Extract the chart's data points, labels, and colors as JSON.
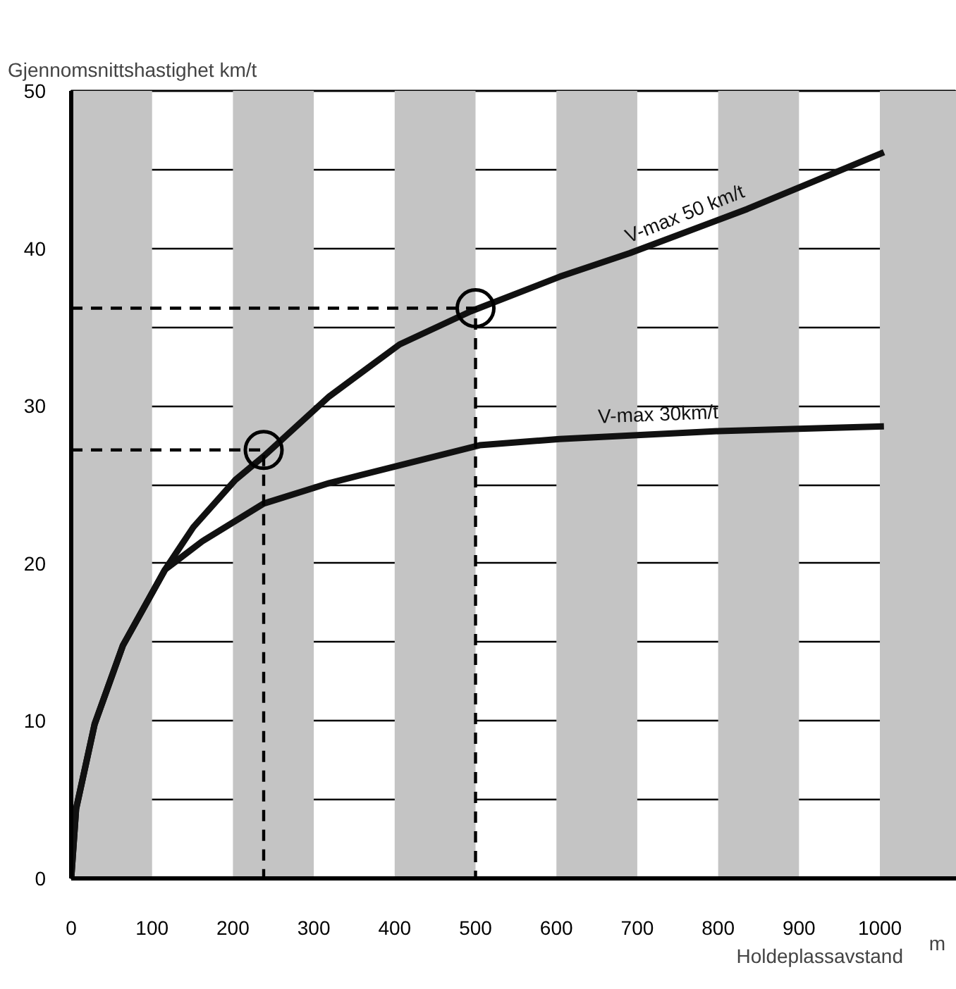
{
  "chart_data": {
    "type": "line",
    "xlabel": "Holdeplassavstand",
    "ylabel": "Gjennomsnittshastighet  km/t",
    "annotations": [
      "m"
    ],
    "xlim": [
      0,
      1095
    ],
    "ylim": [
      0,
      50
    ],
    "xticks": [
      0,
      100,
      200,
      300,
      400,
      500,
      600,
      700,
      800,
      900,
      1000
    ],
    "yticks": [
      0,
      {
        "value": 5,
        "label": null
      },
      10,
      {
        "value": 15,
        "label": null
      },
      20,
      {
        "value": 25,
        "label": null
      },
      30,
      {
        "value": 35,
        "label": null
      },
      40,
      {
        "value": 45,
        "label": null
      },
      50
    ],
    "grid": "y",
    "legend": false,
    "bands": [
      {
        "axis": "x",
        "from": 0,
        "to": 100,
        "color": "#c4c4c4"
      },
      {
        "axis": "x",
        "from": 200,
        "to": 300,
        "color": "#c4c4c4"
      },
      {
        "axis": "x",
        "from": 400,
        "to": 500,
        "color": "#c4c4c4"
      },
      {
        "axis": "x",
        "from": 600,
        "to": 700,
        "color": "#c4c4c4"
      },
      {
        "axis": "x",
        "from": 800,
        "to": 900,
        "color": "#c4c4c4"
      },
      {
        "axis": "x",
        "from": 1000,
        "to": 1095,
        "color": "#c4c4c4"
      }
    ],
    "series": [
      {
        "name": "V-max 50 km/t",
        "color": "#111111",
        "line_style": "solid",
        "x": [
          0,
          6,
          29,
          64,
          116,
          151,
          203,
          238,
          319,
          406,
          494,
          604,
          691,
          836,
          1005
        ],
        "values": [
          0,
          4.4,
          9.8,
          14.8,
          19.6,
          22.3,
          25.3,
          26.8,
          30.6,
          33.9,
          36.0,
          38.2,
          39.7,
          42.5,
          46.1
        ]
      },
      {
        "name": "V-max 30km/t",
        "color": "#111111",
        "line_style": "solid",
        "x": [
          0,
          6,
          29,
          64,
          116,
          162,
          238,
          319,
          505,
          604,
          801,
          1005
        ],
        "values": [
          0,
          4.4,
          9.8,
          14.8,
          19.6,
          21.4,
          23.8,
          25.1,
          27.5,
          27.9,
          28.4,
          28.7
        ]
      },
      {
        "type": "line",
        "color": "#000000",
        "line_style": "dashed",
        "x": [
          0,
          238,
          238
        ],
        "values": [
          27.2,
          27.2,
          0
        ]
      },
      {
        "type": "line",
        "color": "#000000",
        "line_style": "dashed",
        "x": [
          0,
          500,
          500
        ],
        "values": [
          36.2,
          36.2,
          0
        ]
      },
      {
        "type": "scatter",
        "color": "#000000",
        "marker": "circle",
        "x": [
          238,
          500
        ],
        "values": [
          27.2,
          36.2
        ]
      }
    ]
  }
}
